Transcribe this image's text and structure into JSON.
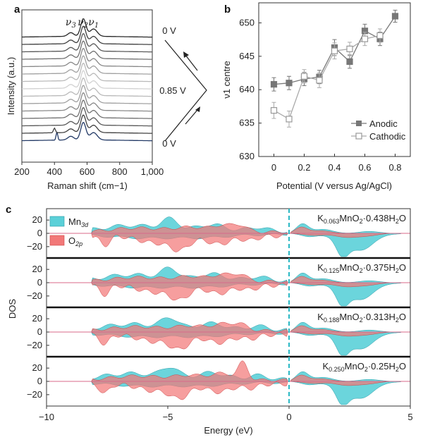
{
  "panels": {
    "a": "a",
    "b": "b",
    "c": "c"
  },
  "chart_data": [
    {
      "panel": "a",
      "type": "line",
      "xlabel": "Raman shift (cm−1)",
      "ylabel": "Intensity (a.u.)",
      "xlim": [
        200,
        1000
      ],
      "xticks": [
        "200",
        "400",
        "600",
        "800",
        "1,000"
      ],
      "peak_labels": [
        "ν3",
        "ν2",
        "ν1"
      ],
      "peak_positions": [
        500,
        575,
        640
      ],
      "potential_labels": [
        "0 V",
        "0.85 V",
        "0 V"
      ],
      "spectra_count": 15,
      "grid": false
    },
    {
      "panel": "b",
      "type": "line",
      "xlabel": "Potential (V versus Ag/AgCl)",
      "ylabel": "ν1 centre",
      "xlim": [
        -0.1,
        0.9
      ],
      "ylim": [
        630,
        653
      ],
      "xticks": [
        "0",
        "0.2",
        "0.4",
        "0.6",
        "0.8"
      ],
      "yticks": [
        "630",
        "635",
        "640",
        "645",
        "650"
      ],
      "legend_position": "bottom-right",
      "series": [
        {
          "name": "Anodic",
          "color": "#777777",
          "marker": "filled-square",
          "x": [
            0,
            0.1,
            0.2,
            0.3,
            0.4,
            0.5,
            0.6,
            0.7,
            0.8
          ],
          "y": [
            640.8,
            641.0,
            641.6,
            641.9,
            646.3,
            644.2,
            648.8,
            647.6,
            651.0
          ],
          "err": [
            1.0,
            1.0,
            1.0,
            1.0,
            1.2,
            1.0,
            1.0,
            1.0,
            0.9
          ]
        },
        {
          "name": "Cathodic",
          "color": "#aaaaaa",
          "marker": "open-square",
          "x": [
            0,
            0.1,
            0.2,
            0.3,
            0.4,
            0.5,
            0.6,
            0.7
          ],
          "y": [
            636.9,
            635.6,
            642.0,
            641.4,
            645.8,
            646.1,
            647.6,
            648.1
          ],
          "err": [
            1.2,
            1.2,
            1.0,
            1.1,
            1.2,
            1.0,
            1.0,
            1.0
          ]
        }
      ],
      "grid": false
    },
    {
      "panel": "c",
      "type": "area",
      "xlabel": "Energy (eV)",
      "ylabel": "DOS",
      "xlim": [
        -10,
        5
      ],
      "ylim": [
        -35,
        35
      ],
      "xticks": [
        "−10",
        "−5",
        "0",
        "5"
      ],
      "yticks": [
        "20",
        "0",
        "−20"
      ],
      "fermi_level": 0,
      "legend": [
        {
          "name": "Mn",
          "sub": "3d",
          "color": "#5bd0d8"
        },
        {
          "name": "O",
          "sub": "2p",
          "color": "#f27878"
        }
      ],
      "subplots": [
        {
          "parts": [
            [
              "K",
              ""
            ],
            [
              "0.063",
              "sub"
            ],
            [
              "MnO",
              ""
            ],
            [
              "2",
              "sub"
            ],
            [
              "·0.438H",
              ""
            ],
            [
              "2",
              "sub"
            ],
            [
              "O",
              ""
            ]
          ]
        },
        {
          "parts": [
            [
              "K",
              ""
            ],
            [
              "0.125",
              "sub"
            ],
            [
              "MnO",
              ""
            ],
            [
              "2",
              "sub"
            ],
            [
              "·0.375H",
              ""
            ],
            [
              "2",
              "sub"
            ],
            [
              "O",
              ""
            ]
          ]
        },
        {
          "parts": [
            [
              "K",
              ""
            ],
            [
              "0.188",
              "sub"
            ],
            [
              "MnO",
              ""
            ],
            [
              "2",
              "sub"
            ],
            [
              "·0.313H",
              ""
            ],
            [
              "2",
              "sub"
            ],
            [
              "O",
              ""
            ]
          ]
        },
        {
          "parts": [
            [
              "K",
              ""
            ],
            [
              "0.250",
              "sub"
            ],
            [
              "MnO",
              ""
            ],
            [
              "2",
              "sub"
            ],
            [
              "·0.25H",
              ""
            ],
            [
              "2",
              "sub"
            ],
            [
              "O",
              ""
            ]
          ]
        }
      ]
    }
  ]
}
